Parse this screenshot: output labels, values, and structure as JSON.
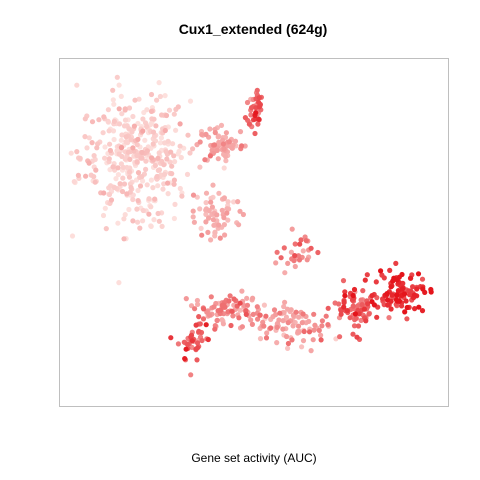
{
  "chart_data": {
    "type": "scatter",
    "title": "Cux1_extended (624g)",
    "subtitle": "",
    "xlabel": "Gene set activity (AUC)",
    "ylabel": "",
    "legend": "none",
    "grid": false,
    "axes_visible": false,
    "color_scale": {
      "low": "#fde0dd",
      "mid": "#f4a0a0",
      "high": "#e4141b",
      "meaning": "Gene set activity (AUC)"
    },
    "clusters": [
      {
        "name": "",
        "center": [
          -9.5,
          7.5
        ],
        "spread": [
          4.2,
          4.8
        ],
        "count": 380,
        "activity": 0.12
      },
      {
        "name": "",
        "center": [
          -1.5,
          8.5
        ],
        "spread": [
          1.8,
          1.4
        ],
        "count": 70,
        "activity": 0.42
      },
      {
        "name": "",
        "center": [
          1.6,
          12.0
        ],
        "spread": [
          0.6,
          1.4
        ],
        "count": 40,
        "activity": 0.7
      },
      {
        "name": "",
        "center": [
          -2.0,
          2.0
        ],
        "spread": [
          1.8,
          2.0
        ],
        "count": 60,
        "activity": 0.32
      },
      {
        "name": "",
        "center": [
          -1.0,
          -6.5
        ],
        "spread": [
          2.8,
          1.2
        ],
        "count": 90,
        "activity": 0.55
      },
      {
        "name": "",
        "center": [
          -4.0,
          -9.5
        ],
        "spread": [
          1.2,
          1.6
        ],
        "count": 40,
        "activity": 0.7
      },
      {
        "name": "",
        "center": [
          5.0,
          -8.0
        ],
        "spread": [
          2.8,
          1.6
        ],
        "count": 90,
        "activity": 0.48
      },
      {
        "name": "",
        "center": [
          5.5,
          -1.5
        ],
        "spread": [
          1.4,
          1.4
        ],
        "count": 30,
        "activity": 0.55
      },
      {
        "name": "",
        "center": [
          11.0,
          -6.5
        ],
        "spread": [
          1.8,
          1.8
        ],
        "count": 80,
        "activity": 0.72
      },
      {
        "name": "",
        "center": [
          15.0,
          -5.0
        ],
        "spread": [
          1.8,
          1.5
        ],
        "count": 100,
        "activity": 0.9
      }
    ],
    "xlim": [
      -16,
      19
    ],
    "ylim": [
      -15,
      16
    ]
  }
}
